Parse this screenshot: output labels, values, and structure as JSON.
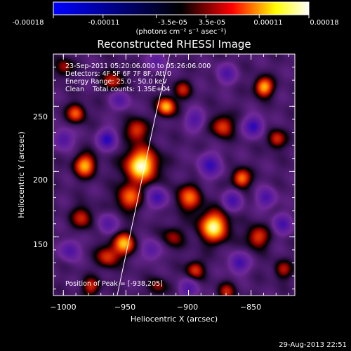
{
  "colorbar": {
    "tick_labels": [
      "-0.00018",
      "-0.00011",
      "-3.5e-05",
      "3.5e-05",
      "0.00011",
      "0.00018"
    ],
    "tick_values": [
      -0.00018,
      -0.00011,
      -3.5e-05,
      3.5e-05,
      0.00011,
      0.00018
    ],
    "unit_label": "(photons cm⁻² s⁻¹ asec⁻²)",
    "range": [
      -0.00018,
      0.00018
    ],
    "colors": [
      "#0000ff",
      "#000000",
      "#ff0000",
      "#ffff00",
      "#ffffff"
    ]
  },
  "chart_data": {
    "type": "heatmap",
    "title": "Reconstructed RHESSI Image",
    "xlabel": "Heliocentric X (arcsec)",
    "ylabel": "Heliocentric Y (arcsec)",
    "xlim": [
      -1008,
      -815
    ],
    "ylim": [
      105,
      290
    ],
    "x_ticks": [
      -1000,
      -950,
      -900,
      -850
    ],
    "x_tick_labels": [
      "−1000",
      "−950",
      "−900",
      "−850"
    ],
    "y_ticks": [
      150,
      200,
      250
    ],
    "y_tick_labels": [
      "150",
      "200",
      "250"
    ],
    "limb_line": [
      [
        -957,
        105
      ],
      [
        -927,
        240
      ],
      [
        -915,
        290
      ]
    ],
    "peak": {
      "x": -938,
      "y": 205
    },
    "blobs": [
      {
        "x": -938,
        "y": 205,
        "sigma": 9,
        "amp": 1.0
      },
      {
        "x": -942,
        "y": 232,
        "sigma": 6,
        "amp": 0.55
      },
      {
        "x": -948,
        "y": 180,
        "sigma": 7,
        "amp": 0.6
      },
      {
        "x": -952,
        "y": 145,
        "sigma": 6,
        "amp": 0.75
      },
      {
        "x": -965,
        "y": 135,
        "sigma": 6,
        "amp": 0.5
      },
      {
        "x": -983,
        "y": 205,
        "sigma": 6,
        "amp": 0.75
      },
      {
        "x": -990,
        "y": 245,
        "sigma": 5,
        "amp": 0.6
      },
      {
        "x": -985,
        "y": 165,
        "sigma": 6,
        "amp": 0.45
      },
      {
        "x": -978,
        "y": 112,
        "sigma": 5,
        "amp": 0.45
      },
      {
        "x": -960,
        "y": 270,
        "sigma": 6,
        "amp": 0.45
      },
      {
        "x": -918,
        "y": 250,
        "sigma": 5,
        "amp": 0.8
      },
      {
        "x": -905,
        "y": 263,
        "sigma": 5,
        "amp": 0.4
      },
      {
        "x": -900,
        "y": 180,
        "sigma": 7,
        "amp": 0.6
      },
      {
        "x": -913,
        "y": 150,
        "sigma": 6,
        "amp": 0.35
      },
      {
        "x": -895,
        "y": 125,
        "sigma": 5,
        "amp": 0.5
      },
      {
        "x": -880,
        "y": 158,
        "sigma": 8,
        "amp": 0.95
      },
      {
        "x": -873,
        "y": 235,
        "sigma": 6,
        "amp": 0.55
      },
      {
        "x": -858,
        "y": 195,
        "sigma": 5,
        "amp": 0.7
      },
      {
        "x": -840,
        "y": 265,
        "sigma": 5,
        "amp": 0.8
      },
      {
        "x": -830,
        "y": 225,
        "sigma": 5,
        "amp": 0.5
      },
      {
        "x": -845,
        "y": 150,
        "sigma": 6,
        "amp": 0.55
      },
      {
        "x": -825,
        "y": 125,
        "sigma": 5,
        "amp": 0.4
      },
      {
        "x": -870,
        "y": 108,
        "sigma": 5,
        "amp": 0.4
      },
      {
        "x": -925,
        "y": 112,
        "sigma": 5,
        "amp": 0.35
      },
      {
        "x": -1000,
        "y": 280,
        "sigma": 5,
        "amp": 0.4
      },
      {
        "x": -965,
        "y": 225,
        "sigma": 5,
        "amp": -0.8
      },
      {
        "x": -1000,
        "y": 225,
        "sigma": 5,
        "amp": -0.6
      },
      {
        "x": -955,
        "y": 255,
        "sigma": 5,
        "amp": -0.5
      },
      {
        "x": -925,
        "y": 180,
        "sigma": 5,
        "amp": -0.7
      },
      {
        "x": -883,
        "y": 205,
        "sigma": 6,
        "amp": -0.7
      },
      {
        "x": -865,
        "y": 178,
        "sigma": 5,
        "amp": -0.6
      },
      {
        "x": -895,
        "y": 240,
        "sigma": 5,
        "amp": -0.55
      },
      {
        "x": -848,
        "y": 235,
        "sigma": 5,
        "amp": -0.8
      },
      {
        "x": -838,
        "y": 180,
        "sigma": 5,
        "amp": -0.6
      },
      {
        "x": -965,
        "y": 160,
        "sigma": 5,
        "amp": -0.5
      },
      {
        "x": -995,
        "y": 140,
        "sigma": 5,
        "amp": -0.6
      },
      {
        "x": -930,
        "y": 140,
        "sigma": 5,
        "amp": -0.5
      },
      {
        "x": -900,
        "y": 110,
        "sigma": 5,
        "amp": -0.5
      },
      {
        "x": -860,
        "y": 130,
        "sigma": 5,
        "amp": -0.7
      },
      {
        "x": -825,
        "y": 160,
        "sigma": 5,
        "amp": -0.6
      },
      {
        "x": -870,
        "y": 275,
        "sigma": 5,
        "amp": -0.55
      },
      {
        "x": -925,
        "y": 285,
        "sigma": 5,
        "amp": -0.4
      }
    ]
  },
  "info": {
    "line1": "23-Sep-2011 05:20:06.000 to 05:26:06.000",
    "line2": "Detectors: 4F 5F 6F 7F 8F, Att 0",
    "line3": "Energy Range: 25.0 - 50.0 keV",
    "line4": "Clean    Total counts: 1.35E+04",
    "peak_text": "Position of Peak = [-938,205]"
  },
  "footer_date": "29-Aug-2013 22:51"
}
